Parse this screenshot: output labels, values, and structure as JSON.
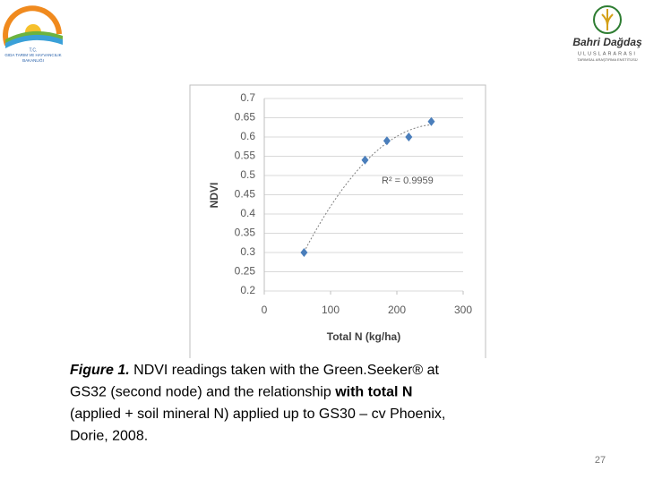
{
  "chart_data": {
    "type": "scatter",
    "x_label": "Total N (kg/ha)",
    "y_label": "NDVI",
    "x": [
      60,
      152,
      185,
      218,
      252
    ],
    "values": [
      0.3,
      0.54,
      0.59,
      0.6,
      0.64
    ],
    "color": "#4a7ebb",
    "xlim": [
      0,
      300
    ],
    "xticks": [
      0,
      100,
      200,
      300
    ],
    "ylim": [
      0.2,
      0.7
    ],
    "yticks": [
      0.2,
      0.25,
      0.3,
      0.35,
      0.4,
      0.45,
      0.5,
      0.55,
      0.6,
      0.65,
      0.7
    ],
    "grid": true,
    "trendline": "polynomial",
    "annotation": "R² = 0.9959"
  },
  "caption": {
    "lines": [
      [
        {
          "text": "Figure 1.",
          "style": "bold-italic"
        },
        {
          "text": " NDVI readings taken with the Green.Seeker® at",
          "style": "normal"
        }
      ],
      [
        {
          "text": "GS32 (second node) and the relationship ",
          "style": "normal"
        },
        {
          "text": "with total N",
          "style": "bold"
        }
      ],
      [
        {
          "text": "(applied + soil mineral N) applied up to GS30 – cv Phoenix,",
          "style": "normal"
        }
      ],
      [
        {
          "text": "Dorie, 2008.",
          "style": "normal"
        }
      ]
    ]
  },
  "page_number": "27",
  "logos": {
    "left": [
      "T.C.",
      "GIDA TARIM VE HAYVANCILIK",
      "BAKANLIĞI"
    ],
    "right": {
      "name": "Bahri Dağdaş",
      "sub": "ULUSLARARASI",
      "line": "TARIMSAL ARAŞTIRMA ENSTİTÜSÜ"
    }
  }
}
